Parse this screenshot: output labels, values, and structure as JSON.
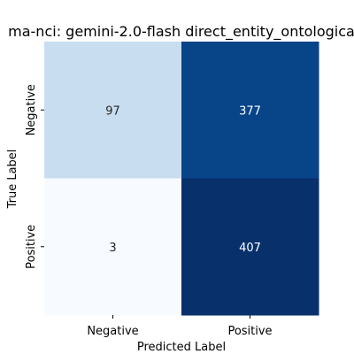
{
  "chart_data": {
    "type": "heatmap",
    "title": "ma-nci: gemini-2.0-flash direct_entity_ontologica",
    "xlabel": "Predicted Label",
    "ylabel": "True Label",
    "x_categories": [
      "Negative",
      "Positive"
    ],
    "y_categories": [
      "Negative",
      "Positive"
    ],
    "values": [
      [
        97,
        377
      ],
      [
        3,
        407
      ]
    ],
    "vmin": 3,
    "vmax": 407,
    "colormap": "Blues",
    "colorbar": false
  }
}
